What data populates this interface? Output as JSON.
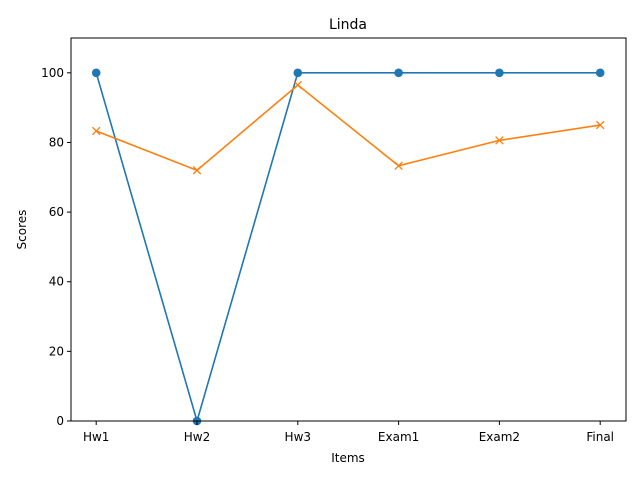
{
  "chart_data": {
    "type": "line",
    "title": "Linda",
    "xlabel": "Items",
    "ylabel": "Scores",
    "categories": [
      "Hw1",
      "Hw2",
      "Hw3",
      "Exam1",
      "Exam2",
      "Final"
    ],
    "ylim": [
      0,
      110
    ],
    "yticks": [
      0,
      20,
      40,
      60,
      80,
      100
    ],
    "grid": false,
    "series": [
      {
        "values": [
          100,
          0,
          100,
          100,
          100,
          100
        ],
        "color": "#1f77b4",
        "marker": "circle"
      },
      {
        "values": [
          83.3,
          72,
          96.5,
          73.3,
          80.6,
          85
        ],
        "color": "#ff7f0e",
        "marker": "x"
      }
    ]
  }
}
